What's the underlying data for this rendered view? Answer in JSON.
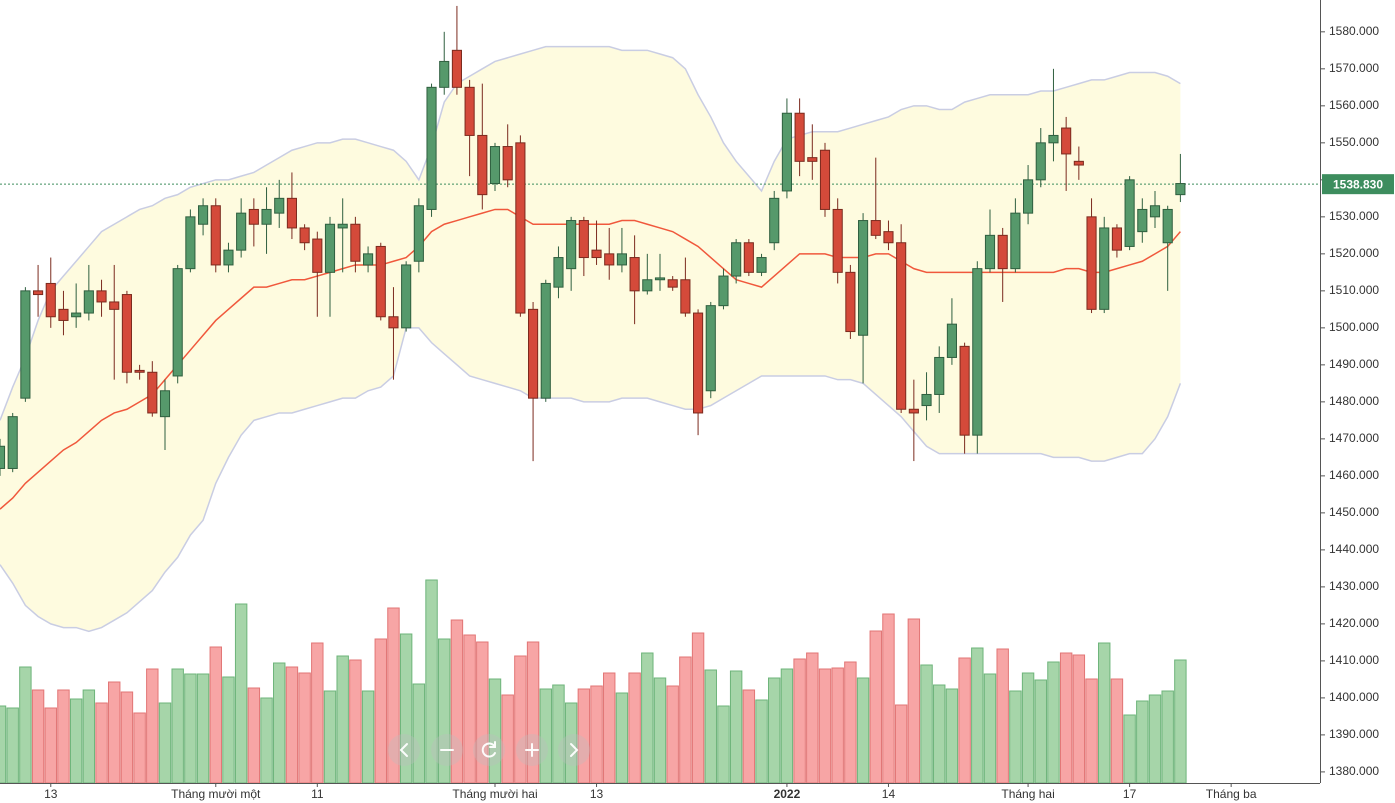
{
  "chart_data": {
    "type": "candlestick",
    "open": [
      1462,
      1462,
      1481,
      1510,
      1512,
      1505,
      1503,
      1504,
      1510,
      1507,
      1509,
      1488.5,
      1488,
      1476,
      1487,
      1516,
      1528,
      1533,
      1517,
      1521,
      1532,
      1528,
      1531,
      1535,
      1527,
      1524,
      1515,
      1527,
      1528,
      1517,
      1522,
      1503,
      1500,
      1518,
      1532,
      1565,
      1575,
      1565,
      1552,
      1539,
      1549,
      1550,
      1505,
      1481,
      1511,
      1516,
      1529,
      1521,
      1520,
      1517,
      1519,
      1510,
      1513,
      1513,
      1513,
      1504,
      1483,
      1506,
      1514,
      1523,
      1515,
      1523,
      1537,
      1558,
      1546,
      1548,
      1532,
      1515,
      1498,
      1529,
      1526,
      1523,
      1478,
      1479,
      1482,
      1492,
      1495,
      1471,
      1516,
      1525,
      1516,
      1531,
      1540,
      1550,
      1554,
      1545,
      1530,
      1505,
      1527,
      1522,
      1526,
      1530,
      1523,
      1536
    ],
    "high": [
      1470,
      1477,
      1511,
      1517,
      1519,
      1510,
      1512,
      1517,
      1513,
      1517,
      1510,
      1490,
      1491,
      1486,
      1517,
      1532,
      1535,
      1535,
      1523,
      1535,
      1535,
      1538,
      1540,
      1542,
      1528,
      1526,
      1530,
      1535,
      1530,
      1522,
      1523,
      1511,
      1518,
      1535,
      1566,
      1580,
      1587,
      1567,
      1566,
      1550,
      1555,
      1552,
      1507,
      1513,
      1522,
      1530,
      1530,
      1529,
      1527,
      1527,
      1525,
      1520,
      1520,
      1514,
      1519,
      1505,
      1507,
      1516,
      1524,
      1524,
      1520,
      1537,
      1562,
      1562,
      1555,
      1550,
      1535,
      1517,
      1531,
      1546,
      1529,
      1528,
      1486,
      1488,
      1495,
      1508,
      1496,
      1518,
      1532,
      1527,
      1535,
      1544,
      1554,
      1570,
      1557,
      1549,
      1535,
      1530,
      1528,
      1541,
      1535,
      1537,
      1533,
      1547
    ],
    "low": [
      1460,
      1461,
      1480,
      1503,
      1500,
      1498,
      1500,
      1502,
      1503,
      1486,
      1485,
      1486,
      1476,
      1467,
      1485,
      1515,
      1525,
      1515,
      1515,
      1519,
      1522,
      1520,
      1527,
      1524,
      1521,
      1503,
      1503,
      1515,
      1515,
      1515,
      1502,
      1486,
      1499,
      1515,
      1530,
      1563,
      1563,
      1541,
      1532,
      1537,
      1538,
      1503,
      1464,
      1480,
      1508,
      1510,
      1514,
      1517,
      1513,
      1515,
      1501,
      1509,
      1510,
      1510,
      1503,
      1471,
      1481,
      1505,
      1512,
      1514,
      1514,
      1521,
      1535,
      1541,
      1540,
      1530,
      1512,
      1497,
      1485,
      1524,
      1521,
      1477,
      1464,
      1475,
      1477,
      1490,
      1466,
      1466,
      1515,
      1507,
      1515,
      1528,
      1538,
      1545,
      1537,
      1540,
      1504,
      1504,
      1519,
      1521,
      1523,
      1527,
      1510,
      1534
    ],
    "close": [
      1468,
      1476,
      1510,
      1509,
      1503,
      1502,
      1504,
      1510,
      1507,
      1505,
      1488,
      1488,
      1477,
      1483,
      1516,
      1530,
      1533,
      1517,
      1521,
      1531,
      1528,
      1532,
      1535,
      1527,
      1523,
      1515,
      1528,
      1528,
      1518,
      1520,
      1503,
      1500,
      1517,
      1533,
      1565,
      1572,
      1565,
      1552,
      1536,
      1549,
      1540,
      1504,
      1481,
      1512,
      1519,
      1529,
      1519,
      1519,
      1517,
      1520,
      1510,
      1513,
      1513.5,
      1511,
      1504,
      1477,
      1506,
      1514,
      1523,
      1515,
      1519,
      1535,
      1558,
      1545,
      1545,
      1532,
      1515,
      1499,
      1529,
      1525,
      1523,
      1478,
      1477,
      1482,
      1492,
      1501,
      1471,
      1516,
      1525,
      1516,
      1531,
      1540,
      1550,
      1552,
      1547,
      1544,
      1505,
      1527,
      1521,
      1540,
      1532,
      1533,
      1532,
      1539
    ],
    "volume": {
      "axis": "y2",
      "values": [
        77,
        75,
        116,
        93,
        75,
        93,
        84,
        93,
        80,
        101,
        91,
        70,
        114,
        80,
        114,
        109,
        109,
        136,
        106,
        179,
        95,
        85,
        120,
        116,
        110,
        140,
        92,
        127,
        123,
        92,
        144,
        175,
        149,
        99,
        203,
        144,
        163,
        148,
        141,
        104,
        88,
        127,
        141,
        94,
        98,
        80,
        94,
        97,
        110,
        90,
        110,
        130,
        105,
        97,
        126,
        150,
        113,
        77,
        112,
        93,
        83,
        105,
        114,
        124,
        130,
        114,
        115,
        121,
        105,
        152,
        169,
        78,
        164,
        118,
        98,
        94,
        125,
        135,
        109,
        134,
        92,
        110,
        103,
        121,
        130,
        128,
        104,
        140,
        104,
        68,
        82,
        88,
        92,
        123
      ]
    },
    "bands": {
      "upper": [
        1475,
        1484,
        1492,
        1502,
        1510,
        1514,
        1518,
        1522,
        1526,
        1528,
        1530,
        1532,
        1533,
        1535,
        1536,
        1538,
        1539,
        1540,
        1540,
        1541,
        1542,
        1544,
        1546,
        1548,
        1549,
        1550,
        1550,
        1551,
        1551,
        1550,
        1549,
        1548,
        1545,
        1540,
        1549,
        1561,
        1566,
        1568,
        1570,
        1572,
        1573,
        1574,
        1575,
        1576,
        1576,
        1576,
        1576,
        1576,
        1576,
        1575,
        1575,
        1575,
        1574,
        1573,
        1570,
        1563,
        1557,
        1550,
        1545,
        1541,
        1537,
        1545,
        1551,
        1552,
        1553,
        1553,
        1553,
        1554,
        1555,
        1556,
        1557,
        1559,
        1560,
        1560,
        1559,
        1559,
        1561,
        1562,
        1563,
        1563,
        1563,
        1563,
        1564,
        1564,
        1565,
        1566,
        1567,
        1567,
        1568,
        1569,
        1569,
        1569,
        1568,
        1566
      ],
      "middle": [
        1451,
        1454,
        1458,
        1461,
        1464,
        1467,
        1469,
        1472,
        1475,
        1477,
        1478,
        1480,
        1482,
        1486,
        1490,
        1494,
        1498,
        1502,
        1505,
        1508,
        1511,
        1511,
        1512,
        1513,
        1513,
        1514,
        1515,
        1516,
        1517,
        1517,
        1517,
        1518,
        1519,
        1522,
        1526,
        1528,
        1529,
        1530,
        1531,
        1532,
        1532,
        1530,
        1528,
        1528,
        1528,
        1528,
        1528,
        1528,
        1528,
        1529,
        1529,
        1528,
        1527,
        1526,
        1524,
        1522,
        1519,
        1516,
        1513,
        1512,
        1511,
        1514,
        1517,
        1520,
        1520,
        1520,
        1519,
        1519,
        1519,
        1520,
        1520,
        1518,
        1516,
        1515,
        1515,
        1515,
        1515,
        1515,
        1515,
        1515,
        1515,
        1515,
        1515,
        1515,
        1516,
        1516,
        1515,
        1515,
        1516,
        1517,
        1518,
        1520,
        1522,
        1526
      ],
      "lower": [
        1436,
        1431,
        1425,
        1422,
        1420,
        1419,
        1419,
        1418,
        1419,
        1421,
        1423,
        1426,
        1429,
        1434,
        1438,
        1444,
        1448,
        1458,
        1465,
        1471,
        1475,
        1476,
        1477,
        1477,
        1478,
        1479,
        1480,
        1481,
        1481,
        1483,
        1484,
        1487,
        1500,
        1500,
        1496,
        1493,
        1490,
        1487,
        1486,
        1485,
        1484,
        1483,
        1481,
        1481,
        1481,
        1481,
        1480,
        1480,
        1480,
        1481,
        1481,
        1481,
        1480,
        1479,
        1478,
        1478,
        1479,
        1481,
        1483,
        1485,
        1487,
        1487,
        1487,
        1487,
        1487,
        1487,
        1486,
        1486,
        1485,
        1482,
        1479,
        1476,
        1472,
        1468,
        1466,
        1466,
        1466,
        1466,
        1466,
        1466,
        1466,
        1466,
        1466,
        1465,
        1465,
        1465,
        1464,
        1464,
        1465,
        1466,
        1466,
        1470,
        1476,
        1485
      ]
    },
    "last_price": {
      "value": 1538.83,
      "label": "1538.830"
    },
    "xlim": [
      0,
      104
    ],
    "xticks": [
      {
        "value": 4,
        "label": "13"
      },
      {
        "value": 17,
        "label": "Tháng mười một"
      },
      {
        "value": 25,
        "label": "11"
      },
      {
        "value": 39,
        "label": "Tháng mười hai"
      },
      {
        "value": 47,
        "label": "13"
      },
      {
        "value": 62,
        "label": "2022",
        "bold": true
      },
      {
        "value": 70,
        "label": "14"
      },
      {
        "value": 81,
        "label": "Tháng hai"
      },
      {
        "value": 89,
        "label": "17"
      },
      {
        "value": 97,
        "label": "Tháng ba"
      }
    ],
    "ylim": [
      1377,
      1588.6
    ],
    "yticks": [
      {
        "value": 1380,
        "label": "1380.000"
      },
      {
        "value": 1390,
        "label": "1390.000"
      },
      {
        "value": 1400,
        "label": "1400.000"
      },
      {
        "value": 1410,
        "label": "1410.000"
      },
      {
        "value": 1420,
        "label": "1420.000"
      },
      {
        "value": 1430,
        "label": "1430.000"
      },
      {
        "value": 1440,
        "label": "1440.000"
      },
      {
        "value": 1450,
        "label": "1450.000"
      },
      {
        "value": 1460,
        "label": "1460.000"
      },
      {
        "value": 1470,
        "label": "1470.000"
      },
      {
        "value": 1480,
        "label": "1480.000"
      },
      {
        "value": 1490,
        "label": "1490.000"
      },
      {
        "value": 1500,
        "label": "1500.000"
      },
      {
        "value": 1510,
        "label": "1510.000"
      },
      {
        "value": 1520,
        "label": "1520.000"
      },
      {
        "value": 1530,
        "label": "1530.000"
      },
      {
        "value": 1540,
        "label": "1540.000"
      },
      {
        "value": 1550,
        "label": "1550.000"
      },
      {
        "value": 1560,
        "label": "1560.000"
      },
      {
        "value": 1570,
        "label": "1570.000"
      },
      {
        "value": 1580,
        "label": "1580.000"
      }
    ],
    "y2lim": [
      0,
      783
    ],
    "colors": {
      "up": "#56996b",
      "up_border": "#2f5f3f",
      "down": "#d44a3a",
      "down_border": "#7b2a1e",
      "volume_up": "#a6d5a9",
      "volume_up_border": "#6db47a",
      "volume_down": "#f7a5a5",
      "volume_down_border": "#e27575",
      "band_fill": "#fefbdf",
      "band_line": "#c9cde3",
      "middle_line": "#f0583c",
      "last_price": "#3d8d5e"
    }
  }
}
